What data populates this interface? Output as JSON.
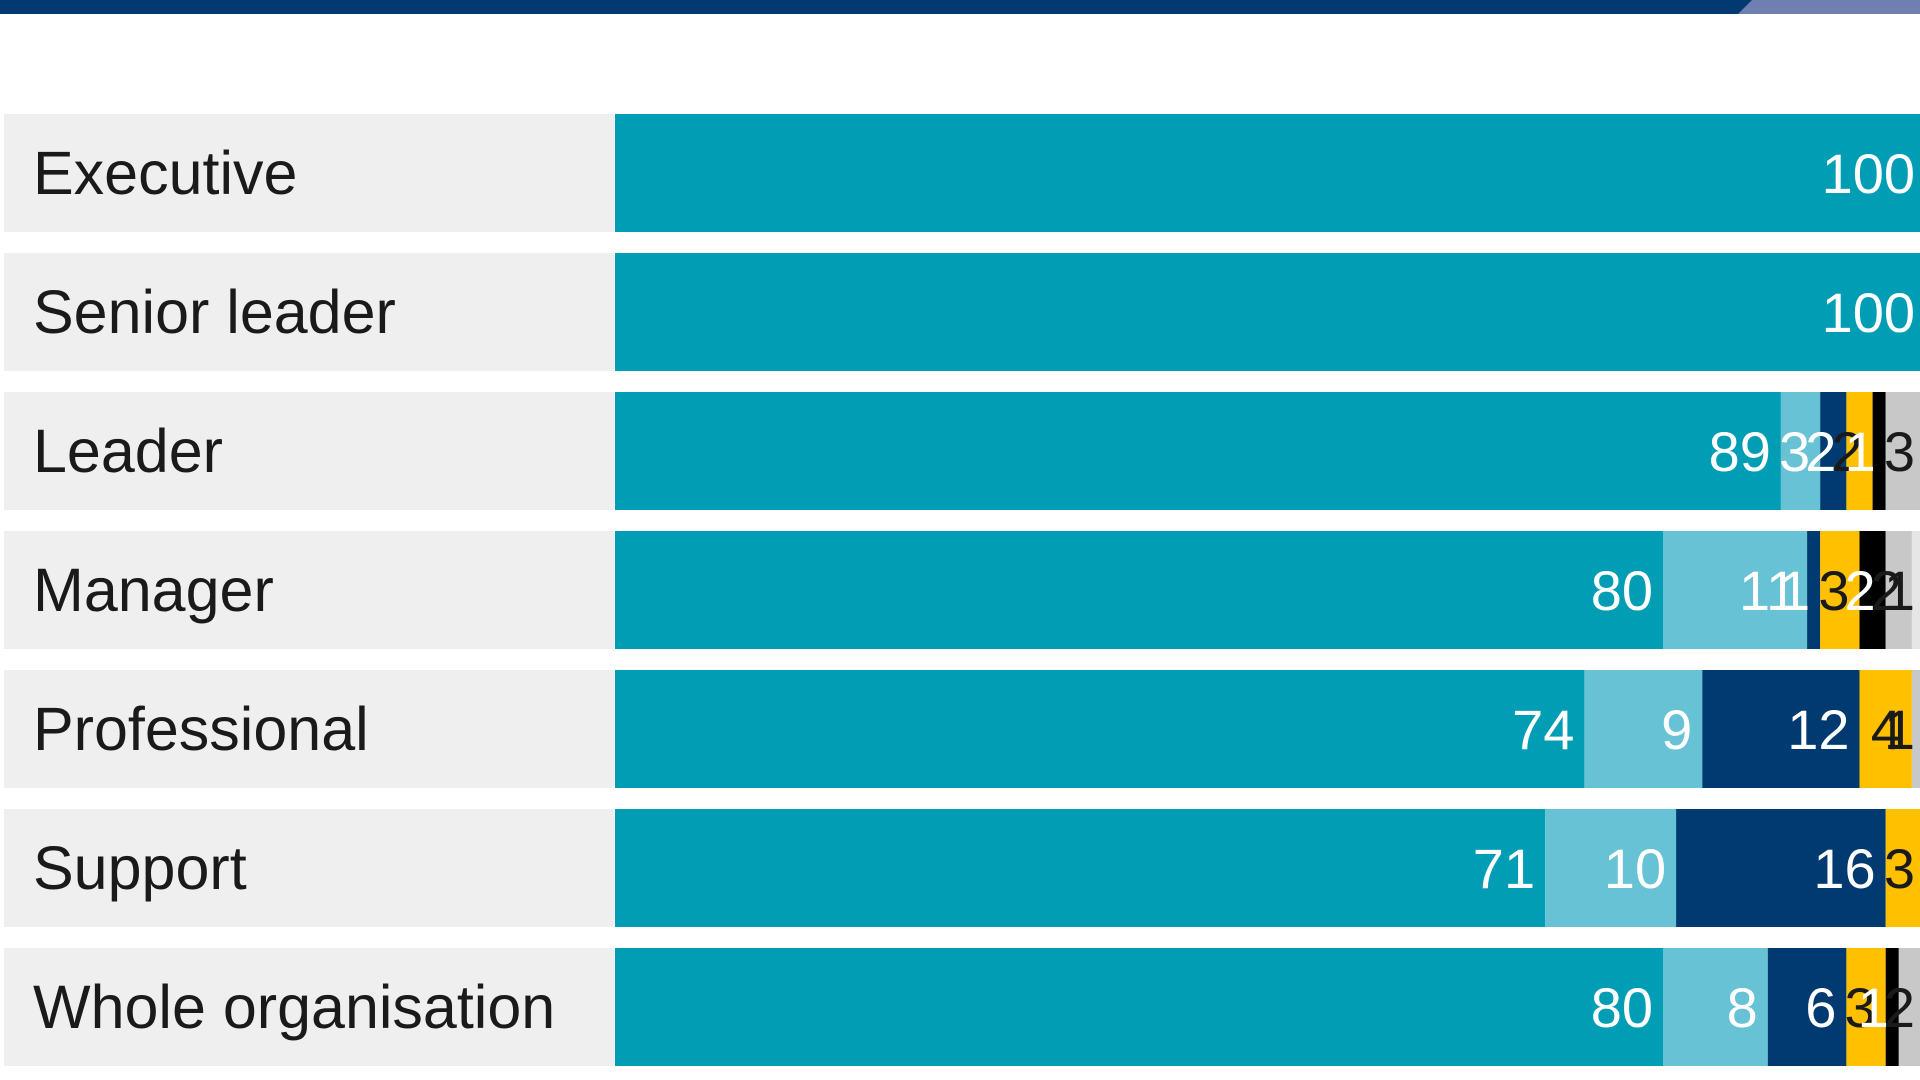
{
  "colors": {
    "header_bar": "#003a70",
    "header_accent": "#6f7fb2",
    "label_bg": "#efefef"
  },
  "chart_data": {
    "type": "bar",
    "orientation": "horizontal",
    "stacked": true,
    "categories": [
      "Executive",
      "Senior leader",
      "Leader",
      "Manager",
      "Professional",
      "Support",
      "Whole organisation"
    ],
    "series": [
      {
        "color": "#009db5",
        "label_color": "#ffffff",
        "values": [
          100,
          100,
          89,
          80,
          74,
          71,
          80
        ]
      },
      {
        "color": "#66c2d4",
        "label_color": "#ffffff",
        "values": [
          0,
          0,
          3,
          11,
          9,
          10,
          8
        ]
      },
      {
        "color": "#003a70",
        "label_color": "#ffffff",
        "values": [
          0,
          0,
          2,
          1,
          12,
          16,
          6
        ]
      },
      {
        "color": "#ffc000",
        "label_color": "#1a1a1a",
        "values": [
          0,
          0,
          2,
          3,
          4,
          3,
          3
        ]
      },
      {
        "color": "#000000",
        "label_color": "#ffffff",
        "values": [
          0,
          0,
          1,
          2,
          0,
          0,
          1
        ]
      },
      {
        "color": "#c8c8c8",
        "label_color": "#1a1a1a",
        "values": [
          0,
          0,
          3,
          2,
          1,
          0,
          2
        ]
      },
      {
        "color": "#e6e6e6",
        "label_color": "#1a1a1a",
        "values": [
          0,
          0,
          0,
          1,
          0,
          0,
          0
        ]
      }
    ],
    "xlim": [
      0,
      100
    ],
    "grid": false,
    "legend": "none",
    "data_labels": true
  }
}
